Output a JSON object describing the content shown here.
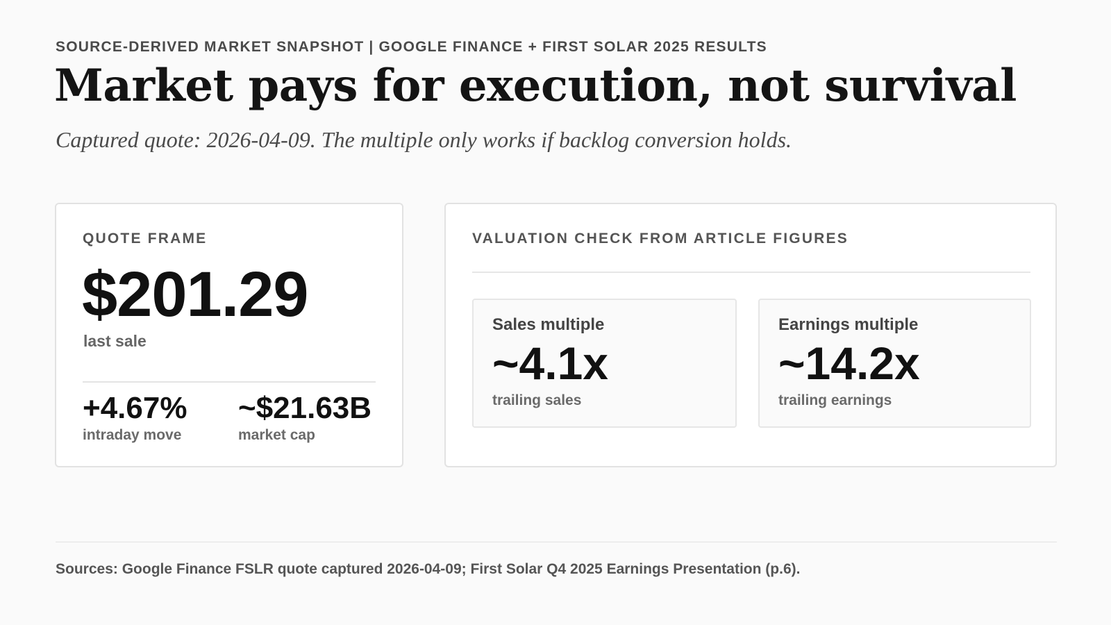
{
  "header": {
    "kicker": "SOURCE-DERIVED MARKET SNAPSHOT | GOOGLE FINANCE + FIRST SOLAR 2025 RESULTS",
    "headline": "Market pays for execution, not survival",
    "subtitle": "Captured quote: 2026-04-09. The multiple only works if backlog conversion holds."
  },
  "quote_frame": {
    "label": "QUOTE FRAME",
    "price": "$201.29",
    "price_caption": "last sale",
    "stats": [
      {
        "value": "+4.67%",
        "caption": "intraday move"
      },
      {
        "value": "~$21.63B",
        "caption": "market cap"
      }
    ]
  },
  "valuation": {
    "label": "VALUATION CHECK FROM ARTICLE FIGURES",
    "cards": [
      {
        "title": "Sales multiple",
        "value": "~4.1x",
        "caption": "trailing sales"
      },
      {
        "title": "Earnings multiple",
        "value": "~14.2x",
        "caption": "trailing earnings"
      }
    ]
  },
  "footer": {
    "sources": "Sources: Google Finance FSLR quote captured 2026-04-09; First Solar Q4 2025 Earnings Presentation (p.6)."
  }
}
